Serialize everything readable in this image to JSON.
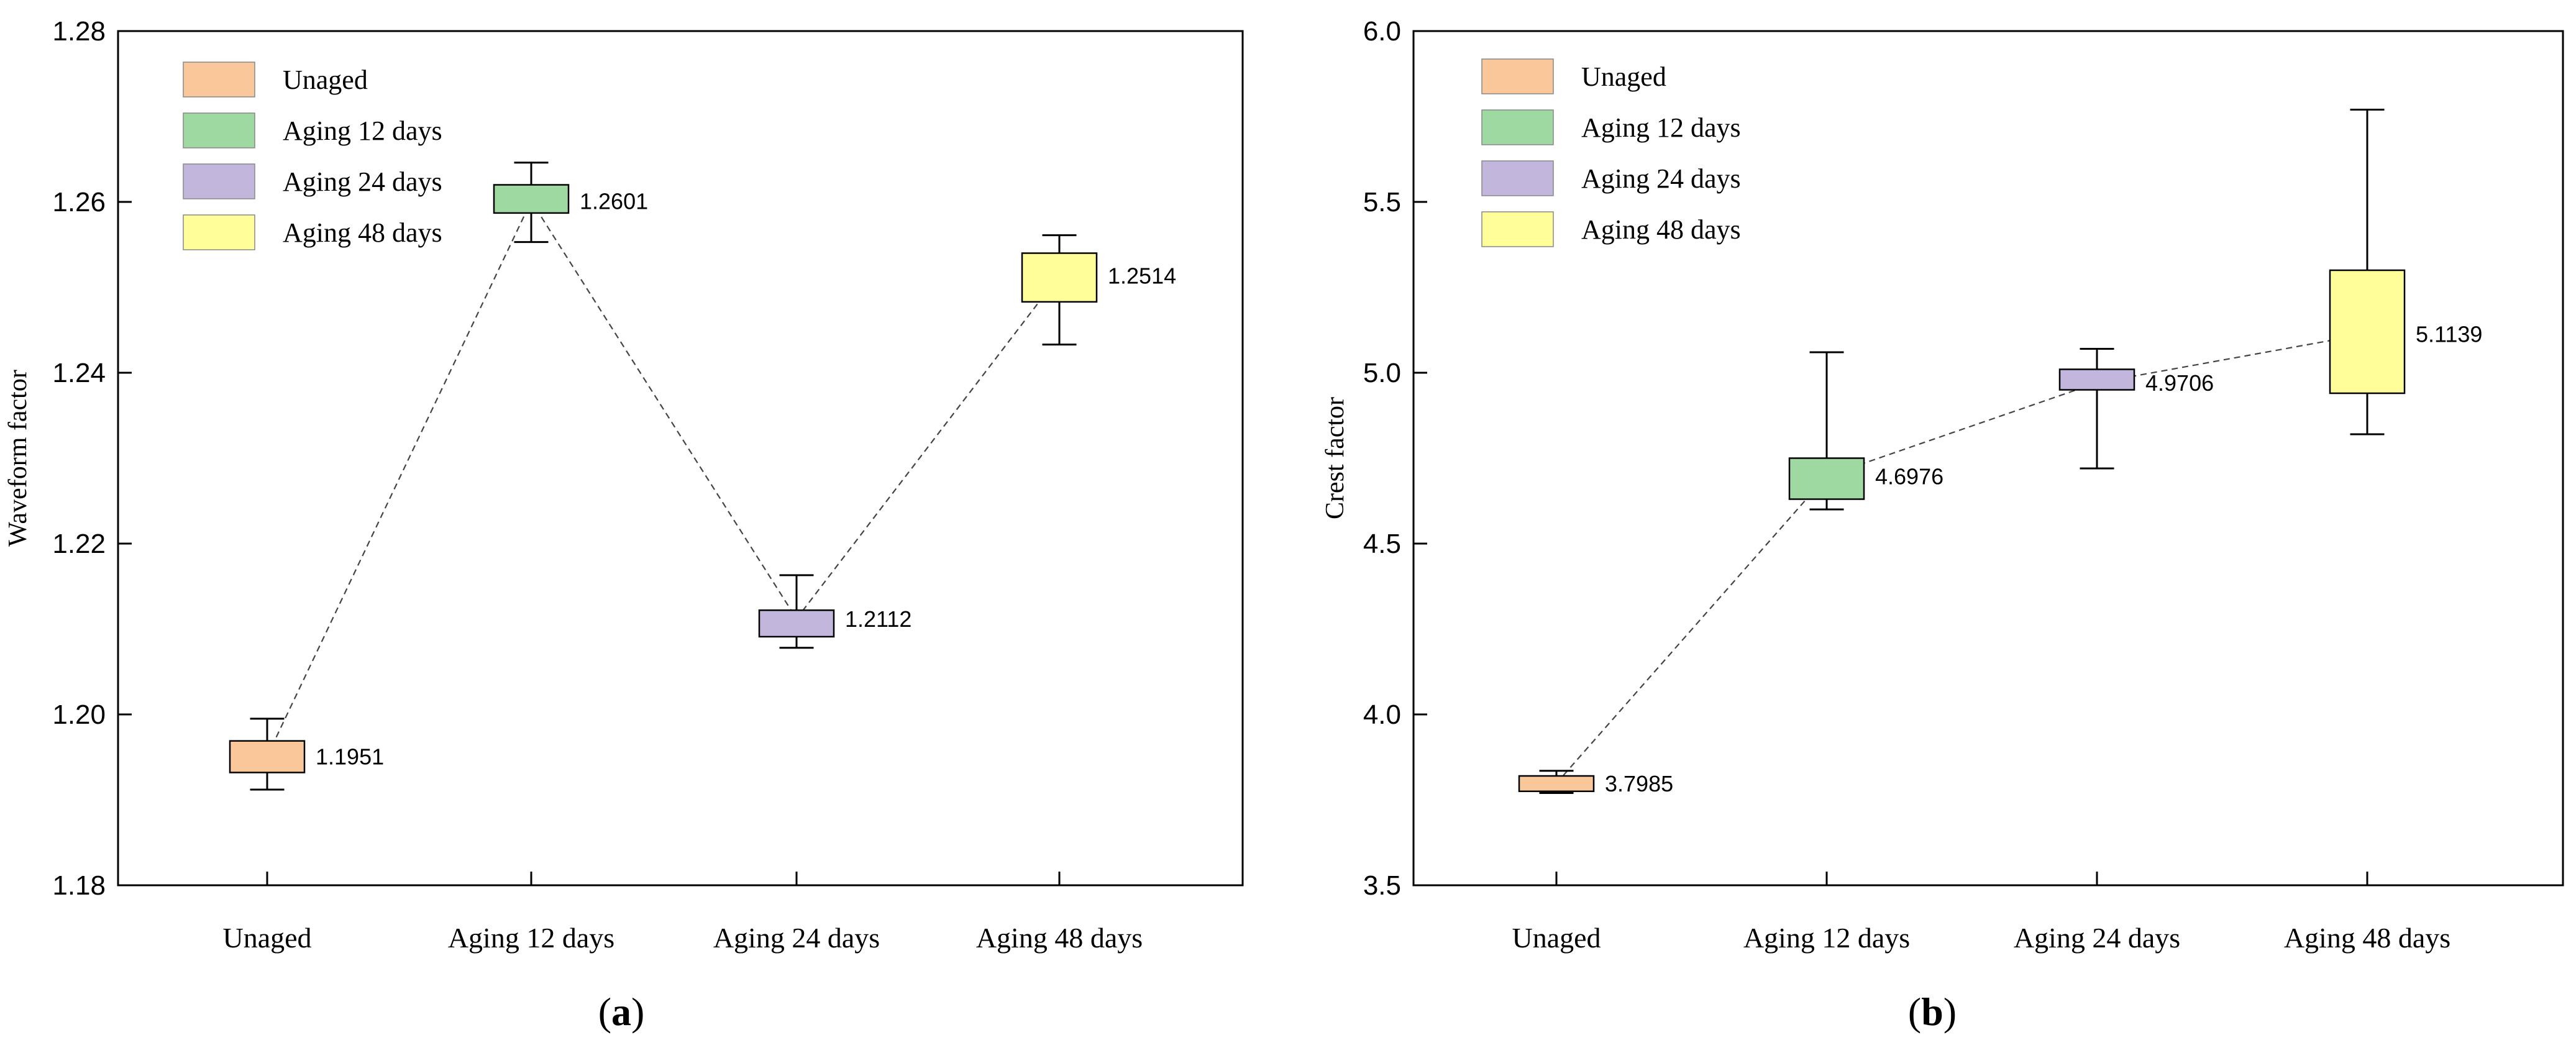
{
  "chart_data": [
    {
      "type": "box",
      "panel_label": "a",
      "ylabel": "Waveform factor",
      "xlabel": "",
      "ylim": [
        1.18,
        1.28
      ],
      "yticks": [
        "1.18",
        "1.20",
        "1.22",
        "1.24",
        "1.26",
        "1.28"
      ],
      "yticks_values": [
        1.18,
        1.2,
        1.22,
        1.24,
        1.26,
        1.28
      ],
      "categories": [
        "Unaged",
        "Aging 12 days",
        "Aging 24 days",
        "Aging 48 days"
      ],
      "legend": [
        "Unaged",
        "Aging 12 days",
        "Aging 24 days",
        "Aging 48 days"
      ],
      "colors": [
        "#f9c79a",
        "#9fd9a2",
        "#c3b6dd",
        "#fffe99"
      ],
      "legend_position": "top-left",
      "boxes": [
        {
          "min": 1.1912,
          "q1": 1.1932,
          "q3": 1.1969,
          "max": 1.1995,
          "mean": 1.1951,
          "label": "1.1951"
        },
        {
          "min": 1.2553,
          "q1": 1.2587,
          "q3": 1.262,
          "max": 1.2646,
          "mean": 1.2601,
          "label": "1.2601"
        },
        {
          "min": 1.2078,
          "q1": 1.2091,
          "q3": 1.2122,
          "max": 1.2163,
          "mean": 1.2112,
          "label": "1.2112"
        },
        {
          "min": 1.2433,
          "q1": 1.2483,
          "q3": 1.254,
          "max": 1.2561,
          "mean": 1.2514,
          "label": "1.2514"
        }
      ]
    },
    {
      "type": "box",
      "panel_label": "b",
      "ylabel": "Crest factor",
      "xlabel": "",
      "ylim": [
        3.5,
        6.0
      ],
      "yticks": [
        "3.5",
        "4.0",
        "4.5",
        "5.0",
        "5.5",
        "6.0"
      ],
      "yticks_values": [
        3.5,
        4.0,
        4.5,
        5.0,
        5.5,
        6.0
      ],
      "categories": [
        "Unaged",
        "Aging 12 days",
        "Aging 24 days",
        "Aging 48 days"
      ],
      "legend": [
        "Unaged",
        "Aging 12 days",
        "Aging 24 days",
        "Aging 48 days"
      ],
      "colors": [
        "#f9c79a",
        "#9fd9a2",
        "#c3b6dd",
        "#fffe99"
      ],
      "legend_position": "top-left",
      "boxes": [
        {
          "min": 3.77,
          "q1": 3.775,
          "q3": 3.82,
          "max": 3.835,
          "mean": 3.7985,
          "label": "3.7985"
        },
        {
          "min": 4.6,
          "q1": 4.63,
          "q3": 4.75,
          "max": 5.06,
          "mean": 4.6976,
          "label": "4.6976"
        },
        {
          "min": 4.72,
          "q1": 4.95,
          "q3": 5.01,
          "max": 5.07,
          "mean": 4.9706,
          "label": "4.9706"
        },
        {
          "min": 4.82,
          "q1": 4.94,
          "q3": 5.3,
          "max": 5.77,
          "mean": 5.1139,
          "label": "5.1139"
        }
      ]
    }
  ]
}
